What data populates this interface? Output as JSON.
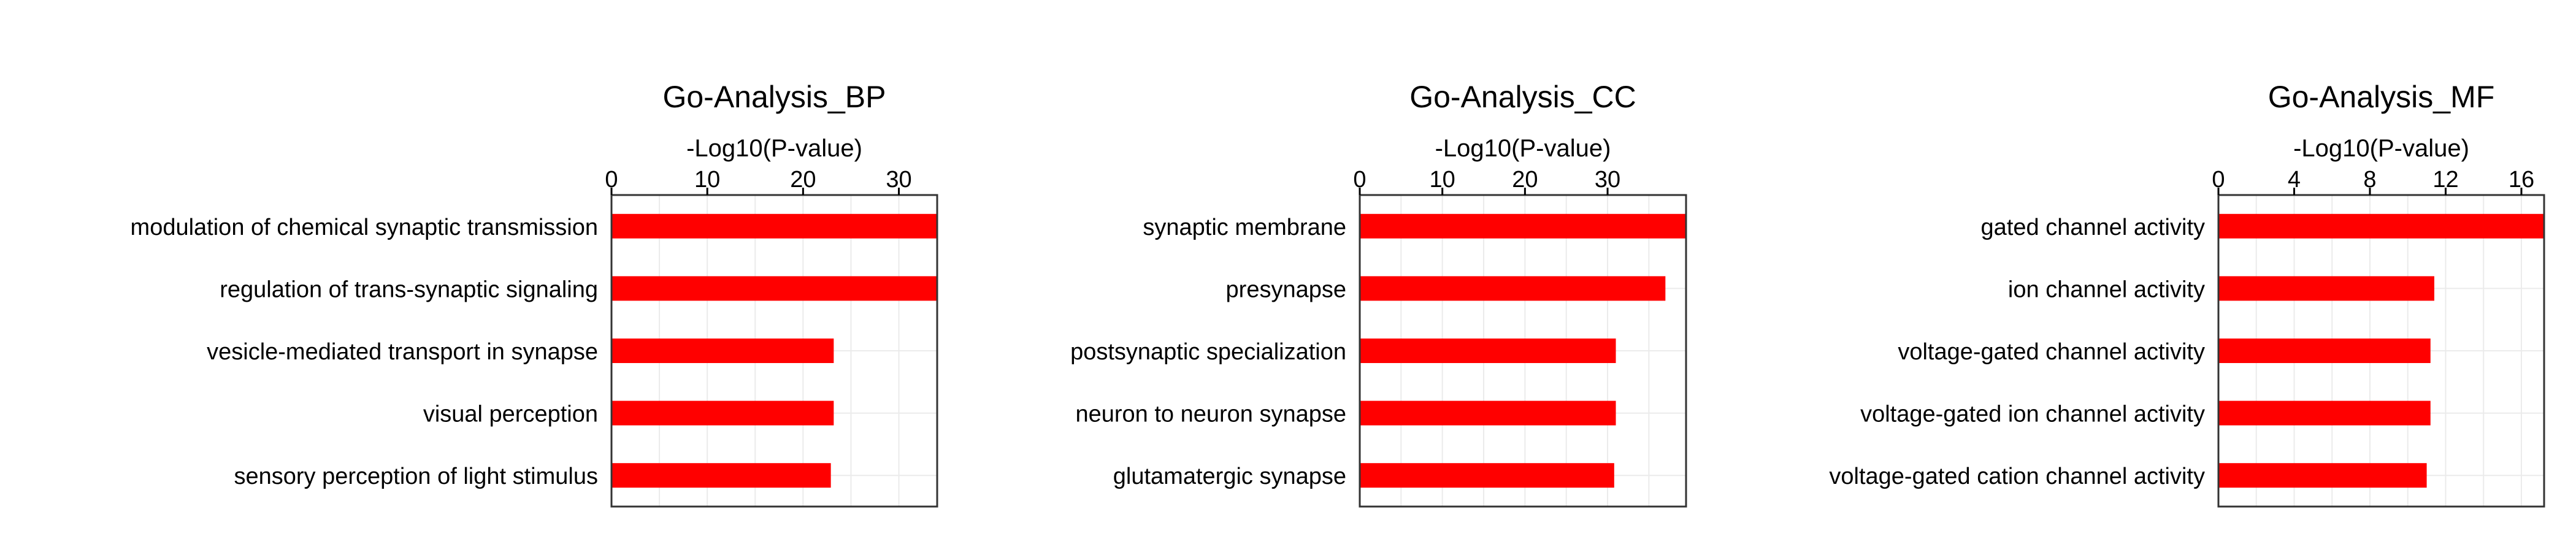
{
  "colors": {
    "bar": "#ff0000",
    "grid": "#ebebeb",
    "axis": "#000000"
  },
  "chart_data": [
    {
      "type": "bar",
      "orientation": "horizontal",
      "title": "Go-Analysis_BP",
      "xlabel": "-Log10(P-value)",
      "xlim": [
        0,
        34
      ],
      "xticks": [
        0,
        10,
        20,
        30
      ],
      "grid": true,
      "categories": [
        "modulation of chemical synaptic transmission",
        "regulation of trans-synaptic signaling",
        "vesicle-mediated transport in synapse",
        "visual perception",
        "sensory perception of light stimulus"
      ],
      "values": [
        34,
        34,
        23.2,
        23.2,
        22.9
      ]
    },
    {
      "type": "bar",
      "orientation": "horizontal",
      "title": "Go-Analysis_CC",
      "xlabel": "-Log10(P-value)",
      "xlim": [
        0,
        39.5
      ],
      "xticks": [
        0,
        10,
        20,
        30
      ],
      "grid": true,
      "categories": [
        "synaptic membrane",
        "presynapse",
        "postsynaptic specialization",
        "neuron to neuron synapse",
        "glutamatergic synapse"
      ],
      "values": [
        39.5,
        37,
        31,
        31,
        30.8
      ]
    },
    {
      "type": "bar",
      "orientation": "horizontal",
      "title": "Go-Analysis_MF",
      "xlabel": "-Log10(P-value)",
      "xlim": [
        0,
        17.2
      ],
      "xticks": [
        0,
        4,
        8,
        12,
        16
      ],
      "grid": true,
      "categories": [
        "gated channel activity",
        "ion channel activity",
        "voltage-gated channel activity",
        "voltage-gated ion channel activity",
        "voltage-gated cation channel activity"
      ],
      "values": [
        17.2,
        11.4,
        11.2,
        11.2,
        11.0
      ]
    }
  ]
}
